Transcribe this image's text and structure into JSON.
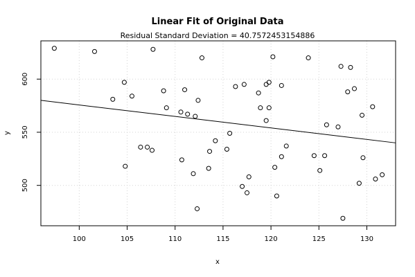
{
  "chart_data": {
    "type": "scatter",
    "title": "Linear Fit of Original Data",
    "subtitle": "Residual Standard Deviation =  40.7572453154886",
    "xlabel": "x",
    "ylabel": "y",
    "xlim": [
      96,
      133
    ],
    "ylim": [
      462,
      636
    ],
    "grid": true,
    "x_ticks": [
      100,
      105,
      110,
      115,
      120,
      125,
      130
    ],
    "y_ticks": [
      500,
      550,
      600
    ],
    "points": [
      {
        "x": 97.4,
        "y": 629
      },
      {
        "x": 101.6,
        "y": 626
      },
      {
        "x": 107.7,
        "y": 628
      },
      {
        "x": 112.8,
        "y": 620
      },
      {
        "x": 120.2,
        "y": 621
      },
      {
        "x": 123.9,
        "y": 620
      },
      {
        "x": 104.7,
        "y": 597
      },
      {
        "x": 103.5,
        "y": 581
      },
      {
        "x": 105.5,
        "y": 584
      },
      {
        "x": 108.8,
        "y": 589
      },
      {
        "x": 111.0,
        "y": 590
      },
      {
        "x": 112.4,
        "y": 580
      },
      {
        "x": 109.1,
        "y": 573
      },
      {
        "x": 110.6,
        "y": 569
      },
      {
        "x": 111.3,
        "y": 567
      },
      {
        "x": 112.1,
        "y": 565
      },
      {
        "x": 116.3,
        "y": 593
      },
      {
        "x": 117.2,
        "y": 595
      },
      {
        "x": 118.7,
        "y": 587
      },
      {
        "x": 118.9,
        "y": 573
      },
      {
        "x": 119.5,
        "y": 595
      },
      {
        "x": 119.8,
        "y": 597
      },
      {
        "x": 121.1,
        "y": 594
      },
      {
        "x": 119.8,
        "y": 573
      },
      {
        "x": 119.5,
        "y": 561
      },
      {
        "x": 115.7,
        "y": 549
      },
      {
        "x": 114.2,
        "y": 542
      },
      {
        "x": 113.6,
        "y": 532
      },
      {
        "x": 115.4,
        "y": 534
      },
      {
        "x": 113.5,
        "y": 516
      },
      {
        "x": 106.4,
        "y": 536
      },
      {
        "x": 107.1,
        "y": 536
      },
      {
        "x": 107.6,
        "y": 533
      },
      {
        "x": 110.7,
        "y": 524
      },
      {
        "x": 104.8,
        "y": 518
      },
      {
        "x": 111.9,
        "y": 511
      },
      {
        "x": 117.7,
        "y": 508
      },
      {
        "x": 117.0,
        "y": 499
      },
      {
        "x": 117.5,
        "y": 493
      },
      {
        "x": 112.3,
        "y": 478
      },
      {
        "x": 120.6,
        "y": 490
      },
      {
        "x": 120.4,
        "y": 517
      },
      {
        "x": 121.1,
        "y": 527
      },
      {
        "x": 121.6,
        "y": 537
      },
      {
        "x": 124.5,
        "y": 528
      },
      {
        "x": 125.6,
        "y": 528
      },
      {
        "x": 125.1,
        "y": 514
      },
      {
        "x": 125.8,
        "y": 557
      },
      {
        "x": 127.0,
        "y": 555
      },
      {
        "x": 127.3,
        "y": 612
      },
      {
        "x": 128.3,
        "y": 611
      },
      {
        "x": 128.7,
        "y": 591
      },
      {
        "x": 128.0,
        "y": 588
      },
      {
        "x": 129.5,
        "y": 566
      },
      {
        "x": 130.6,
        "y": 574
      },
      {
        "x": 129.6,
        "y": 526
      },
      {
        "x": 129.2,
        "y": 502
      },
      {
        "x": 130.9,
        "y": 506
      },
      {
        "x": 131.6,
        "y": 510
      },
      {
        "x": 127.5,
        "y": 469
      }
    ],
    "fit_line": {
      "x": [
        96,
        133
      ],
      "y": [
        580,
        540
      ]
    }
  }
}
